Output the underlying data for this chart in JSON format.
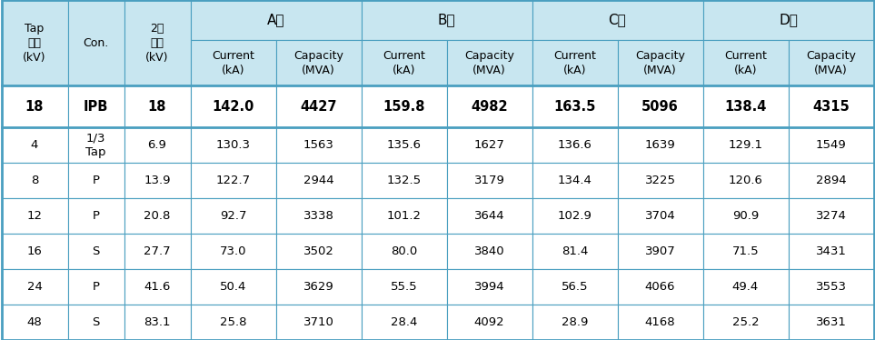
{
  "header_bg": "#c8e6f0",
  "data_bg": "#ffffff",
  "bold_row_bg": "#ffffff",
  "border_color": "#4a9fc0",
  "text_color": "#000000",
  "col_groups": [
    "A사",
    "B사",
    "C사",
    "D사"
  ],
  "merged_headers": [
    "Tap\n전압\n(kV)",
    "Con.",
    "2차\n전압\n(kV)"
  ],
  "sub_headers": [
    "Current\n(kA)",
    "Capacity\n(MVA)"
  ],
  "rows": [
    {
      "tap": "18",
      "con": "IPB",
      "v2": "18",
      "bold": true,
      "A_cur": "142.0",
      "A_cap": "4427",
      "B_cur": "159.8",
      "B_cap": "4982",
      "C_cur": "163.5",
      "C_cap": "5096",
      "D_cur": "138.4",
      "D_cap": "4315"
    },
    {
      "tap": "4",
      "con": "1/3\nTap",
      "v2": "6.9",
      "bold": false,
      "A_cur": "130.3",
      "A_cap": "1563",
      "B_cur": "135.6",
      "B_cap": "1627",
      "C_cur": "136.6",
      "C_cap": "1639",
      "D_cur": "129.1",
      "D_cap": "1549"
    },
    {
      "tap": "8",
      "con": "P",
      "v2": "13.9",
      "bold": false,
      "A_cur": "122.7",
      "A_cap": "2944",
      "B_cur": "132.5",
      "B_cap": "3179",
      "C_cur": "134.4",
      "C_cap": "3225",
      "D_cur": "120.6",
      "D_cap": "2894"
    },
    {
      "tap": "12",
      "con": "P",
      "v2": "20.8",
      "bold": false,
      "A_cur": "92.7",
      "A_cap": "3338",
      "B_cur": "101.2",
      "B_cap": "3644",
      "C_cur": "102.9",
      "C_cap": "3704",
      "D_cur": "90.9",
      "D_cap": "3274"
    },
    {
      "tap": "16",
      "con": "S",
      "v2": "27.7",
      "bold": false,
      "A_cur": "73.0",
      "A_cap": "3502",
      "B_cur": "80.0",
      "B_cap": "3840",
      "C_cur": "81.4",
      "C_cap": "3907",
      "D_cur": "71.5",
      "D_cap": "3431"
    },
    {
      "tap": "24",
      "con": "P",
      "v2": "41.6",
      "bold": false,
      "A_cur": "50.4",
      "A_cap": "3629",
      "B_cur": "55.5",
      "B_cap": "3994",
      "C_cur": "56.5",
      "C_cap": "4066",
      "D_cur": "49.4",
      "D_cap": "3553"
    },
    {
      "tap": "48",
      "con": "S",
      "v2": "83.1",
      "bold": false,
      "A_cur": "25.8",
      "A_cap": "3710",
      "B_cur": "28.4",
      "B_cap": "4092",
      "C_cur": "28.9",
      "C_cap": "4168",
      "D_ur": "25.2",
      "D_cap": "3631"
    }
  ],
  "figsize": [
    9.63,
    3.74
  ],
  "dpi": 100
}
